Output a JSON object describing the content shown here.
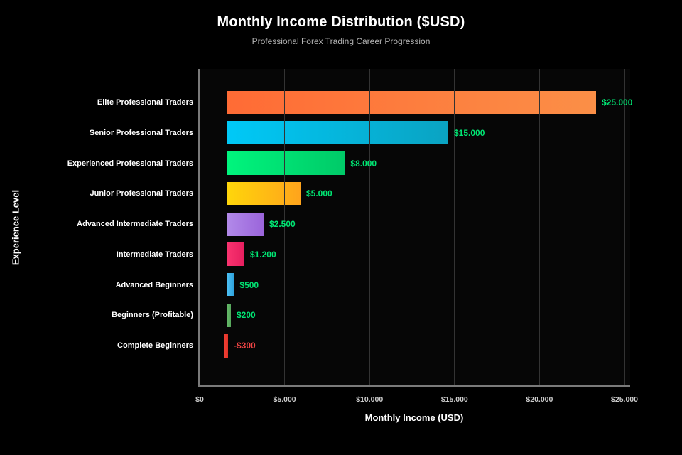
{
  "header": {
    "title": "Monthly Income Distribution ($USD)",
    "subtitle": "Professional Forex Trading Career Progression"
  },
  "axes": {
    "y_title": "Experience Level",
    "x_title": "Monthly Income (USD)"
  },
  "colors": {
    "background": "#000000",
    "plot_background": "#060606",
    "axis_line": "#7a7a7a",
    "gridline": "#333333",
    "title_text": "#ffffff",
    "subtitle_text": "#b3b3b3",
    "tick_text": "#cccccc",
    "category_text": "#ffffff",
    "positive_value_text": "#00e673",
    "negative_value_text": "#ef4444"
  },
  "chart_data": {
    "type": "bar",
    "orientation": "horizontal",
    "title": "Monthly Income Distribution ($USD)",
    "subtitle": "Professional Forex Trading Career Progression",
    "xlabel": "Monthly Income (USD)",
    "ylabel": "Experience Level",
    "xlim": [
      0,
      25000
    ],
    "grid": true,
    "legend": false,
    "x_tick_labels": [
      "$0",
      "$5.000",
      "$10.000",
      "$15.000",
      "$20.000",
      "$25.000"
    ],
    "x_tick_values": [
      0,
      5000,
      10000,
      15000,
      20000,
      25000
    ],
    "categories": [
      "Elite Professional Traders",
      "Senior Professional Traders",
      "Experienced Professional Traders",
      "Junior Professional Traders",
      "Advanced Intermediate Traders",
      "Intermediate Traders",
      "Advanced Beginners",
      "Beginners (Profitable)",
      "Complete Beginners"
    ],
    "values": [
      25000,
      15000,
      8000,
      5000,
      2500,
      1200,
      500,
      200,
      -300
    ],
    "value_labels": [
      "$25.000",
      "$15.000",
      "$8.000",
      "$5.000",
      "$2.500",
      "$1.200",
      "$500",
      "$200",
      "-$300"
    ],
    "bar_gradients": [
      {
        "from": "#ff6b35",
        "to": "#fb8f47"
      },
      {
        "from": "#00c9f7",
        "to": "#0aa3c2"
      },
      {
        "from": "#00f57d",
        "to": "#00ca68"
      },
      {
        "from": "#ffd60a",
        "to": "#ffa41c"
      },
      {
        "from": "#b28ae9",
        "to": "#9b65db"
      },
      {
        "from": "#fa3470",
        "to": "#e61e5f"
      },
      {
        "from": "#4fc3f7",
        "to": "#2fa3dd"
      },
      {
        "from": "#66bb6a",
        "to": "#57a85c"
      },
      {
        "from": "#ef4136",
        "to": "#e23228"
      }
    ]
  }
}
